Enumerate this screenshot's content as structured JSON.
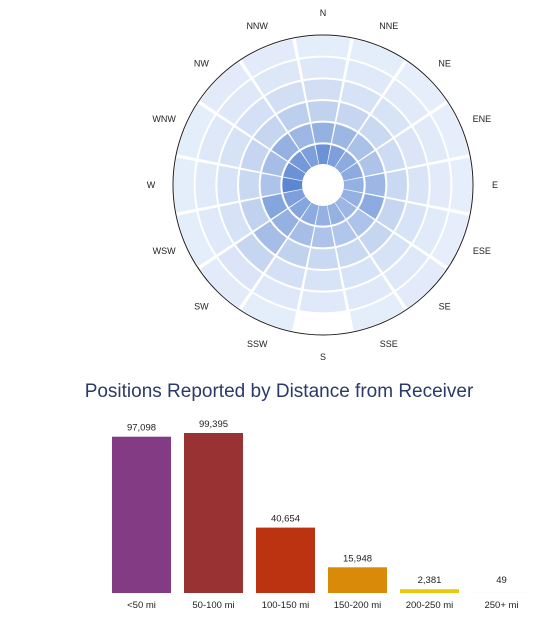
{
  "chart_data": [
    {
      "type": "heatmap",
      "directions": [
        "N",
        "NNE",
        "NE",
        "ENE",
        "E",
        "ESE",
        "SE",
        "SSE",
        "S",
        "SSW",
        "SW",
        "WSW",
        "W",
        "WNW",
        "NW",
        "NNW"
      ],
      "rings": 6,
      "intensity": [
        [
          0.8,
          0.55,
          0.28,
          0.18,
          0.1,
          0.06
        ],
        [
          0.7,
          0.5,
          0.25,
          0.15,
          0.09,
          0.06
        ],
        [
          0.6,
          0.42,
          0.22,
          0.14,
          0.08,
          0.05
        ],
        [
          0.6,
          0.4,
          0.2,
          0.12,
          0.08,
          0.05
        ],
        [
          0.55,
          0.5,
          0.22,
          0.13,
          0.07,
          0.05
        ],
        [
          0.55,
          0.6,
          0.25,
          0.14,
          0.08,
          0.05
        ],
        [
          0.5,
          0.4,
          0.25,
          0.15,
          0.1,
          0.07
        ],
        [
          0.55,
          0.38,
          0.22,
          0.14,
          0.09,
          0.06
        ],
        [
          0.55,
          0.4,
          0.22,
          0.14,
          0.09,
          0.0
        ],
        [
          0.6,
          0.45,
          0.28,
          0.16,
          0.1,
          0.06
        ],
        [
          0.65,
          0.55,
          0.45,
          0.25,
          0.12,
          0.07
        ],
        [
          0.7,
          0.65,
          0.28,
          0.15,
          0.09,
          0.06
        ],
        [
          0.9,
          0.4,
          0.22,
          0.14,
          0.08,
          0.06
        ],
        [
          0.8,
          0.45,
          0.25,
          0.15,
          0.1,
          0.06
        ],
        [
          0.75,
          0.55,
          0.25,
          0.16,
          0.1,
          0.07
        ],
        [
          0.7,
          0.5,
          0.3,
          0.18,
          0.11,
          0.07
        ]
      ]
    },
    {
      "type": "bar",
      "title": "Positions Reported by Distance from Receiver",
      "categories": [
        "<50 mi",
        "50-100 mi",
        "100-150 mi",
        "150-200 mi",
        "200-250 mi",
        "250+ mi"
      ],
      "values": [
        97098,
        99395,
        40654,
        15948,
        2381,
        49
      ],
      "value_labels": [
        "97,098",
        "99,395",
        "40,654",
        "15,948",
        "2,381",
        "49"
      ],
      "colors": [
        "#833c84",
        "#993333",
        "#bb3310",
        "#d98a08",
        "#e8c810",
        "#dddddd"
      ],
      "ylim": [
        0,
        99395
      ]
    }
  ]
}
